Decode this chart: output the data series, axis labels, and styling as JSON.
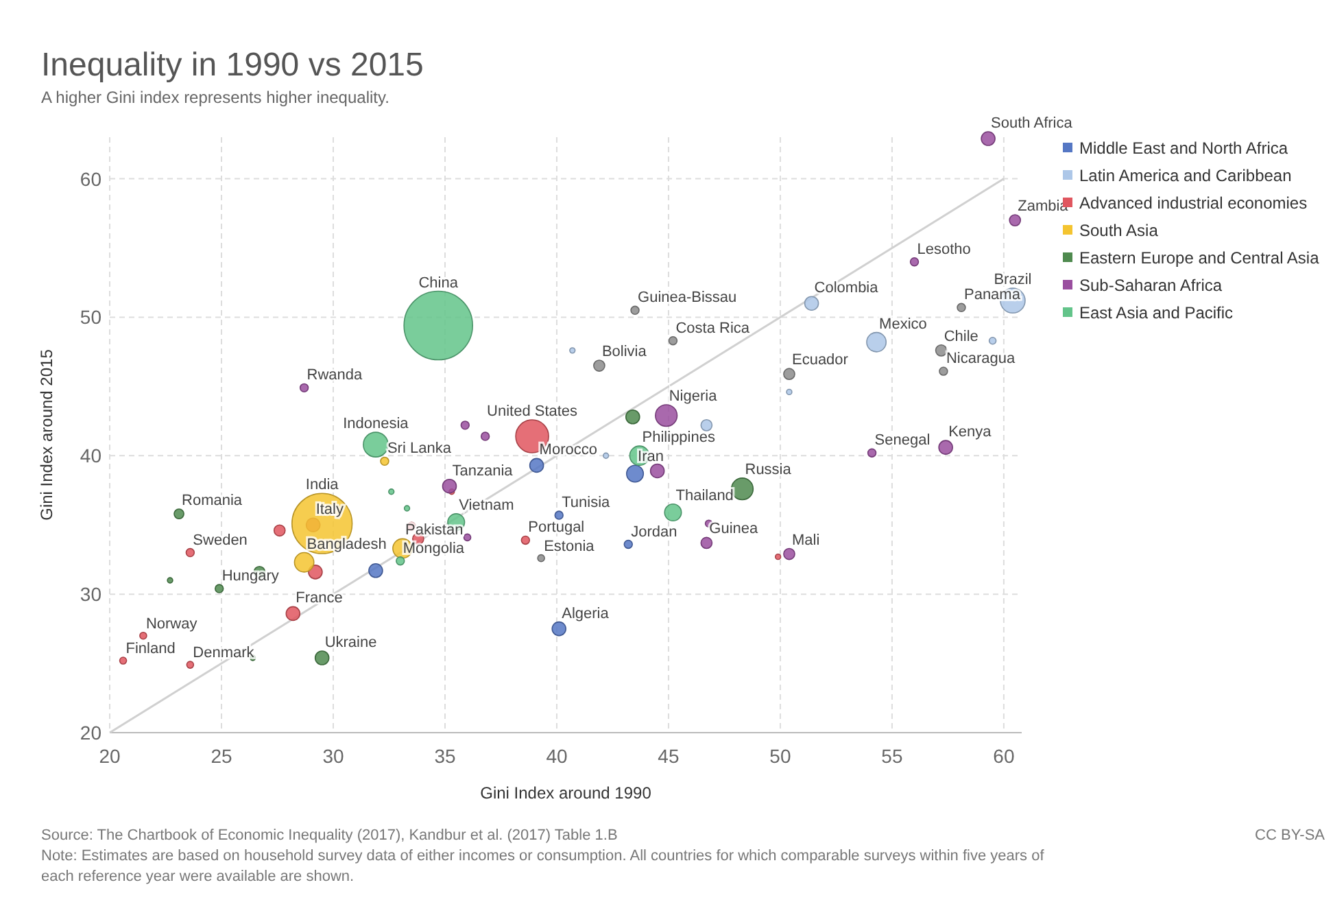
{
  "chart_data": {
    "type": "bubble",
    "title": "Inequality in 1990 vs 2015",
    "subtitle": "A higher Gini index represents higher inequality.",
    "xlabel": "Gini Index around 1990",
    "ylabel": "Gini Index around 2015",
    "xlim": [
      20,
      60.8
    ],
    "ylim": [
      20,
      63
    ],
    "xticks": [
      20,
      25,
      30,
      35,
      40,
      45,
      50,
      55,
      60
    ],
    "yticks": [
      20,
      30,
      40,
      50,
      60
    ],
    "grid": true,
    "legend": "top right",
    "marker": "circle",
    "series": [
      {
        "type": "line",
        "marker": "none",
        "color": "#d0d0d0",
        "x": [
          20,
          60
        ],
        "values": [
          20,
          60
        ]
      },
      {
        "name": "Middle East and North Africa",
        "color": "#5577c4",
        "x": [
          39.1,
          40.1,
          43.5,
          43.2,
          40.1,
          31.9
        ],
        "values": [
          39.3,
          35.7,
          38.7,
          33.6,
          27.5,
          31.7
        ],
        "sizes": [
          0.04,
          0.014,
          0.06,
          0.014,
          0.04,
          0.04
        ]
      },
      {
        "name": "Latin America and Caribbean",
        "color": "#adc7e8",
        "x": [
          60.4,
          51.4,
          54.3,
          40.7,
          59.5,
          50.4,
          46.7,
          42.2
        ],
        "values": [
          51.2,
          51.0,
          48.2,
          47.6,
          48.3,
          44.6,
          42.2,
          40.0
        ],
        "sizes": [
          0.13,
          0.04,
          0.08,
          0.006,
          0.01,
          0.006,
          0.026,
          0.006
        ]
      },
      {
        "name": "Advanced industrial economies",
        "color": "#e0565f",
        "x": [
          38.9,
          29.1,
          28.2,
          38.6,
          23.6,
          21.5,
          20.6,
          23.6,
          27.6,
          29.2,
          33.8,
          33.5,
          35.3,
          49.9
        ],
        "values": [
          41.4,
          35.0,
          28.6,
          33.9,
          33.0,
          27.0,
          25.2,
          24.9,
          34.6,
          31.6,
          34.0,
          34.9,
          37.4,
          32.7
        ],
        "sizes": [
          0.23,
          0.04,
          0.04,
          0.014,
          0.014,
          0.01,
          0.01,
          0.01,
          0.026,
          0.04,
          0.026,
          0.014,
          0.006,
          0.006
        ]
      },
      {
        "name": "South Asia",
        "color": "#f4c430",
        "x": [
          29.5,
          28.7,
          33.1,
          32.3
        ],
        "values": [
          35.1,
          32.3,
          33.3,
          39.6
        ],
        "sizes": [
          0.77,
          0.08,
          0.08,
          0.014
        ]
      },
      {
        "name": "Eastern Europe and Central Asia",
        "color": "#4f8a4f",
        "x": [
          48.3,
          23.1,
          24.9,
          29.5,
          26.7,
          43.4,
          26.4,
          22.7
        ],
        "values": [
          37.6,
          35.8,
          30.4,
          25.4,
          31.6,
          42.8,
          25.4,
          31.0
        ],
        "sizes": [
          0.1,
          0.02,
          0.014,
          0.04,
          0.026,
          0.04,
          0.006,
          0.006
        ]
      },
      {
        "name": "Sub-Saharan Africa",
        "color": "#9a4f9f",
        "x": [
          59.3,
          60.5,
          56.0,
          57.4,
          54.1,
          50.4,
          46.7,
          44.9,
          35.2,
          28.7,
          44.5,
          35.9,
          36.8,
          36.0,
          46.8
        ],
        "values": [
          62.9,
          57.0,
          54.0,
          40.6,
          40.2,
          32.9,
          33.7,
          42.9,
          37.8,
          44.9,
          38.9,
          42.2,
          41.4,
          34.1,
          35.1
        ],
        "sizes": [
          0.04,
          0.026,
          0.014,
          0.04,
          0.014,
          0.026,
          0.026,
          0.1,
          0.04,
          0.014,
          0.04,
          0.014,
          0.014,
          0.01,
          0.01
        ]
      },
      {
        "name": "East Asia and Pacific",
        "color": "#63c48a",
        "x": [
          34.7,
          31.9,
          35.5,
          45.2,
          43.7,
          33.0,
          33.3,
          32.6
        ],
        "values": [
          49.4,
          40.8,
          35.2,
          35.9,
          40.0,
          32.4,
          36.2,
          37.4
        ],
        "sizes": [
          1,
          0.13,
          0.06,
          0.06,
          0.08,
          0.014,
          0.006,
          0.006
        ]
      },
      {
        "color": "#8c8c8c",
        "x": [
          43.5,
          45.2,
          41.9,
          58.1,
          57.2,
          57.3,
          50.4,
          39.3
        ],
        "values": [
          50.5,
          48.3,
          46.5,
          50.7,
          47.6,
          46.1,
          45.9,
          32.6
        ],
        "sizes": [
          0.014,
          0.014,
          0.026,
          0.014,
          0.026,
          0.014,
          0.026,
          0.01
        ]
      }
    ],
    "annotations": [
      {
        "text": "South Africa",
        "x": 59.3,
        "y": 62.9
      },
      {
        "text": "Zambia",
        "x": 60.5,
        "y": 57.0
      },
      {
        "text": "Lesotho",
        "x": 56.0,
        "y": 54.0
      },
      {
        "text": "Brazil",
        "x": 60.4,
        "y": 51.2
      },
      {
        "text": "Colombia",
        "x": 51.4,
        "y": 51.0
      },
      {
        "text": "Panama",
        "x": 58.1,
        "y": 50.7
      },
      {
        "text": "Guinea-Bissau",
        "x": 43.5,
        "y": 50.5
      },
      {
        "text": "China",
        "x": 34.7,
        "y": 49.4
      },
      {
        "text": "Costa Rica",
        "x": 45.2,
        "y": 48.3
      },
      {
        "text": "Mexico",
        "x": 54.3,
        "y": 48.2
      },
      {
        "text": "Chile",
        "x": 57.2,
        "y": 47.6
      },
      {
        "text": "Bolivia",
        "x": 41.9,
        "y": 46.5
      },
      {
        "text": "Ecuador",
        "x": 50.4,
        "y": 45.9
      },
      {
        "text": "Nicaragua",
        "x": 57.3,
        "y": 46.1
      },
      {
        "text": "Rwanda",
        "x": 28.7,
        "y": 44.9
      },
      {
        "text": "Nigeria",
        "x": 44.9,
        "y": 42.9
      },
      {
        "text": "Indonesia",
        "x": 31.9,
        "y": 40.8
      },
      {
        "text": "United States",
        "x": 38.9,
        "y": 41.4
      },
      {
        "text": "Sri Lanka",
        "x": 32.3,
        "y": 39.6
      },
      {
        "text": "Morocco",
        "x": 39.1,
        "y": 39.3
      },
      {
        "text": "Philippines",
        "x": 43.7,
        "y": 40.0
      },
      {
        "text": "Iran",
        "x": 43.5,
        "y": 38.7
      },
      {
        "text": "Senegal",
        "x": 54.1,
        "y": 40.2
      },
      {
        "text": "Kenya",
        "x": 57.4,
        "y": 40.6
      },
      {
        "text": "Tanzania",
        "x": 35.2,
        "y": 37.8
      },
      {
        "text": "Russia",
        "x": 48.3,
        "y": 37.6
      },
      {
        "text": "India",
        "x": 29.5,
        "y": 35.1
      },
      {
        "text": "Romania",
        "x": 23.1,
        "y": 35.8
      },
      {
        "text": "Vietnam",
        "x": 35.5,
        "y": 35.2
      },
      {
        "text": "Tunisia",
        "x": 40.1,
        "y": 35.7
      },
      {
        "text": "Thailand",
        "x": 45.2,
        "y": 35.9
      },
      {
        "text": "Italy",
        "x": 29.1,
        "y": 35.0
      },
      {
        "text": "Pakistan",
        "x": 33.1,
        "y": 33.3
      },
      {
        "text": "Portugal",
        "x": 38.6,
        "y": 33.9
      },
      {
        "text": "Jordan",
        "x": 43.2,
        "y": 33.6
      },
      {
        "text": "Guinea",
        "x": 46.7,
        "y": 33.7
      },
      {
        "text": "Mali",
        "x": 50.4,
        "y": 32.9
      },
      {
        "text": "Sweden",
        "x": 23.6,
        "y": 33.0
      },
      {
        "text": "Bangladesh",
        "x": 28.7,
        "y": 32.3
      },
      {
        "text": "Mongolia",
        "x": 33.0,
        "y": 32.4
      },
      {
        "text": "Estonia",
        "x": 39.3,
        "y": 32.6
      },
      {
        "text": "Hungary",
        "x": 24.9,
        "y": 30.4
      },
      {
        "text": "France",
        "x": 28.2,
        "y": 28.6
      },
      {
        "text": "Algeria",
        "x": 40.1,
        "y": 27.5
      },
      {
        "text": "Norway",
        "x": 21.5,
        "y": 27.0
      },
      {
        "text": "Finland",
        "x": 20.6,
        "y": 25.2
      },
      {
        "text": "Denmark",
        "x": 23.6,
        "y": 24.9
      },
      {
        "text": "Ukraine",
        "x": 29.5,
        "y": 25.4
      },
      "CC BY-SA",
      "Source: The Chartbook of Economic Inequality (2017), Kandbur et al. (2017) Table 1.B",
      "Note: Estimates are based on household survey data of either incomes or consumption. All countries for which comparable surveys within five years of each reference year were available are shown."
    ]
  }
}
